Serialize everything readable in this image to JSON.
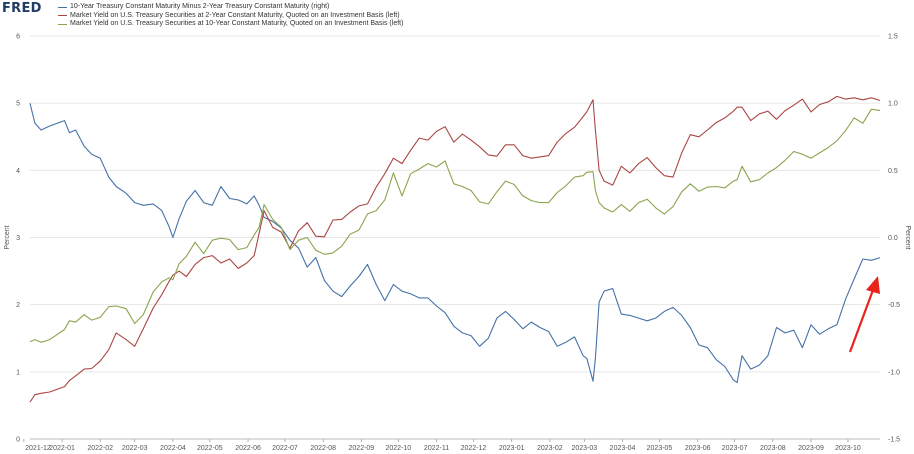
{
  "logo": "FRED",
  "colors": {
    "spread": "#4572a7",
    "two_year": "#aa4643",
    "ten_year": "#89a54e",
    "arrow": "#e8231b",
    "grid": "#e6e6e6",
    "axis_text": "#555555"
  },
  "chart_data": {
    "type": "line",
    "title": "",
    "xlabel": "",
    "ylabel": "Percent",
    "ylabel_right": "Percent",
    "ylim": [
      0,
      6
    ],
    "ylim_right": [
      -1.5,
      1.5
    ],
    "yticks": [
      "0",
      "1",
      "2",
      "3",
      "4",
      "5",
      "6"
    ],
    "yticks_right": [
      "-1.5",
      "-1.0",
      "-0.5",
      "0.0",
      "0.5",
      "1.0",
      "1.5"
    ],
    "xlim": [
      "2021-12-06",
      "2023-10-27"
    ],
    "grid": true,
    "legend_position": "top-left",
    "x_tick_labels": [
      "2021-12",
      "2022-01",
      "2022-02",
      "2022-03",
      "2022-04",
      "2022-05",
      "2022-06",
      "2022-07",
      "2022-08",
      "2022-09",
      "2022-10",
      "2022-11",
      "2022-12",
      "2023-01",
      "2023-02",
      "2023-03",
      "2023-04",
      "2023-05",
      "2023-06",
      "2023-07",
      "2023-08",
      "2023-09",
      "2023-10"
    ],
    "x_tick_dates": [
      "2021-12-01",
      "2022-01-01",
      "2022-02-01",
      "2022-03-01",
      "2022-04-01",
      "2022-05-01",
      "2022-06-01",
      "2022-07-01",
      "2022-08-01",
      "2022-09-01",
      "2022-10-01",
      "2022-11-01",
      "2022-12-01",
      "2023-01-01",
      "2023-02-01",
      "2023-03-01",
      "2023-04-01",
      "2023-05-01",
      "2023-06-01",
      "2023-07-01",
      "2023-08-01",
      "2023-09-01",
      "2023-10-01"
    ],
    "series": [
      {
        "name": "10-Year Treasury Constant Maturity Minus 2-Year Treasury Constant Maturity (right)",
        "axis": "right",
        "color": "#4572a7",
        "x": [
          "2021-12-06",
          "2021-12-10",
          "2021-12-15",
          "2021-12-22",
          "2022-01-03",
          "2022-01-07",
          "2022-01-12",
          "2022-01-19",
          "2022-01-25",
          "2022-02-01",
          "2022-02-08",
          "2022-02-14",
          "2022-02-22",
          "2022-03-01",
          "2022-03-08",
          "2022-03-16",
          "2022-03-23",
          "2022-03-29",
          "2022-04-01",
          "2022-04-06",
          "2022-04-12",
          "2022-04-19",
          "2022-04-26",
          "2022-05-03",
          "2022-05-10",
          "2022-05-17",
          "2022-05-24",
          "2022-05-31",
          "2022-06-06",
          "2022-06-10",
          "2022-06-14",
          "2022-06-21",
          "2022-06-28",
          "2022-07-05",
          "2022-07-12",
          "2022-07-19",
          "2022-07-26",
          "2022-08-02",
          "2022-08-09",
          "2022-08-16",
          "2022-08-23",
          "2022-08-30",
          "2022-09-06",
          "2022-09-13",
          "2022-09-20",
          "2022-09-27",
          "2022-10-04",
          "2022-10-11",
          "2022-10-18",
          "2022-10-25",
          "2022-11-01",
          "2022-11-08",
          "2022-11-15",
          "2022-11-22",
          "2022-11-29",
          "2022-12-06",
          "2022-12-13",
          "2022-12-20",
          "2022-12-27",
          "2023-01-03",
          "2023-01-10",
          "2023-01-17",
          "2023-01-24",
          "2023-01-31",
          "2023-02-07",
          "2023-02-14",
          "2023-02-21",
          "2023-02-28",
          "2023-03-03",
          "2023-03-08",
          "2023-03-10",
          "2023-03-13",
          "2023-03-17",
          "2023-03-24",
          "2023-03-31",
          "2023-04-07",
          "2023-04-14",
          "2023-04-21",
          "2023-04-28",
          "2023-05-05",
          "2023-05-12",
          "2023-05-19",
          "2023-05-26",
          "2023-06-02",
          "2023-06-09",
          "2023-06-16",
          "2023-06-23",
          "2023-06-30",
          "2023-07-03",
          "2023-07-07",
          "2023-07-14",
          "2023-07-21",
          "2023-07-28",
          "2023-08-04",
          "2023-08-11",
          "2023-08-18",
          "2023-08-25",
          "2023-09-01",
          "2023-09-08",
          "2023-09-15",
          "2023-09-22",
          "2023-09-29",
          "2023-10-06",
          "2023-10-13",
          "2023-10-20",
          "2023-10-27"
        ],
        "values": [
          1.0,
          0.85,
          0.8,
          0.83,
          0.87,
          0.78,
          0.8,
          0.68,
          0.62,
          0.59,
          0.45,
          0.38,
          0.33,
          0.26,
          0.24,
          0.25,
          0.2,
          0.08,
          0.0,
          0.14,
          0.27,
          0.35,
          0.26,
          0.24,
          0.38,
          0.29,
          0.28,
          0.25,
          0.31,
          0.24,
          0.15,
          0.12,
          0.07,
          -0.02,
          -0.08,
          -0.22,
          -0.15,
          -0.32,
          -0.4,
          -0.44,
          -0.36,
          -0.29,
          -0.2,
          -0.35,
          -0.47,
          -0.35,
          -0.4,
          -0.42,
          -0.45,
          -0.45,
          -0.51,
          -0.56,
          -0.66,
          -0.71,
          -0.73,
          -0.81,
          -0.75,
          -0.6,
          -0.55,
          -0.61,
          -0.68,
          -0.63,
          -0.67,
          -0.7,
          -0.81,
          -0.78,
          -0.74,
          -0.88,
          -0.9,
          -1.07,
          -0.9,
          -0.48,
          -0.4,
          -0.38,
          -0.57,
          -0.58,
          -0.6,
          -0.62,
          -0.6,
          -0.55,
          -0.52,
          -0.58,
          -0.67,
          -0.8,
          -0.82,
          -0.91,
          -0.96,
          -1.06,
          -1.08,
          -0.88,
          -0.98,
          -0.95,
          -0.88,
          -0.67,
          -0.71,
          -0.69,
          -0.82,
          -0.65,
          -0.72,
          -0.68,
          -0.65,
          -0.46,
          -0.31,
          -0.16,
          -0.17,
          -0.15
        ]
      },
      {
        "name": "Market Yield on U.S. Treasury Securities at 2-Year Constant Maturity, Quoted on an Investment Basis (left)",
        "axis": "left",
        "color": "#aa4643",
        "x": [
          "2021-12-06",
          "2021-12-10",
          "2021-12-15",
          "2021-12-22",
          "2022-01-03",
          "2022-01-07",
          "2022-01-12",
          "2022-01-19",
          "2022-01-25",
          "2022-02-01",
          "2022-02-08",
          "2022-02-14",
          "2022-02-22",
          "2022-03-01",
          "2022-03-08",
          "2022-03-16",
          "2022-03-23",
          "2022-03-29",
          "2022-04-01",
          "2022-04-06",
          "2022-04-12",
          "2022-04-19",
          "2022-04-26",
          "2022-05-03",
          "2022-05-10",
          "2022-05-17",
          "2022-05-24",
          "2022-05-31",
          "2022-06-06",
          "2022-06-10",
          "2022-06-14",
          "2022-06-21",
          "2022-06-28",
          "2022-07-05",
          "2022-07-12",
          "2022-07-19",
          "2022-07-26",
          "2022-08-02",
          "2022-08-09",
          "2022-08-16",
          "2022-08-23",
          "2022-08-30",
          "2022-09-06",
          "2022-09-13",
          "2022-09-20",
          "2022-09-27",
          "2022-10-04",
          "2022-10-11",
          "2022-10-18",
          "2022-10-25",
          "2022-11-01",
          "2022-11-08",
          "2022-11-15",
          "2022-11-22",
          "2022-11-29",
          "2022-12-06",
          "2022-12-13",
          "2022-12-20",
          "2022-12-27",
          "2023-01-03",
          "2023-01-10",
          "2023-01-17",
          "2023-01-24",
          "2023-01-31",
          "2023-02-07",
          "2023-02-14",
          "2023-02-21",
          "2023-02-28",
          "2023-03-03",
          "2023-03-08",
          "2023-03-10",
          "2023-03-13",
          "2023-03-17",
          "2023-03-24",
          "2023-03-31",
          "2023-04-07",
          "2023-04-14",
          "2023-04-21",
          "2023-04-28",
          "2023-05-05",
          "2023-05-12",
          "2023-05-19",
          "2023-05-26",
          "2023-06-02",
          "2023-06-09",
          "2023-06-16",
          "2023-06-23",
          "2023-06-30",
          "2023-07-03",
          "2023-07-07",
          "2023-07-14",
          "2023-07-21",
          "2023-07-28",
          "2023-08-04",
          "2023-08-11",
          "2023-08-18",
          "2023-08-25",
          "2023-09-01",
          "2023-09-08",
          "2023-09-15",
          "2023-09-22",
          "2023-09-29",
          "2023-10-06",
          "2023-10-13",
          "2023-10-20",
          "2023-10-27"
        ],
        "values": [
          0.55,
          0.66,
          0.68,
          0.7,
          0.78,
          0.87,
          0.94,
          1.04,
          1.05,
          1.16,
          1.33,
          1.58,
          1.48,
          1.38,
          1.64,
          1.95,
          2.15,
          2.35,
          2.44,
          2.5,
          2.42,
          2.6,
          2.7,
          2.73,
          2.62,
          2.68,
          2.54,
          2.62,
          2.73,
          3.06,
          3.4,
          3.15,
          3.08,
          2.84,
          3.1,
          3.22,
          3.02,
          3.01,
          3.26,
          3.27,
          3.38,
          3.47,
          3.5,
          3.75,
          3.95,
          4.18,
          4.1,
          4.3,
          4.48,
          4.45,
          4.58,
          4.65,
          4.42,
          4.54,
          4.45,
          4.35,
          4.23,
          4.21,
          4.38,
          4.38,
          4.22,
          4.18,
          4.2,
          4.22,
          4.42,
          4.55,
          4.64,
          4.8,
          4.87,
          5.05,
          4.6,
          4.0,
          3.84,
          3.78,
          4.06,
          3.96,
          4.1,
          4.19,
          4.04,
          3.92,
          3.9,
          4.26,
          4.53,
          4.5,
          4.6,
          4.71,
          4.78,
          4.88,
          4.94,
          4.94,
          4.74,
          4.84,
          4.88,
          4.76,
          4.89,
          4.97,
          5.06,
          4.87,
          4.98,
          5.02,
          5.1,
          5.06,
          5.08,
          5.05,
          5.08,
          5.04
        ]
      },
      {
        "name": "Market Yield on U.S. Treasury Securities at 10-Year Constant Maturity, Quoted on an Investment Basis (left)",
        "axis": "left",
        "color": "#89a54e",
        "x": [
          "2021-12-06",
          "2021-12-10",
          "2021-12-15",
          "2021-12-22",
          "2022-01-03",
          "2022-01-07",
          "2022-01-12",
          "2022-01-19",
          "2022-01-25",
          "2022-02-01",
          "2022-02-08",
          "2022-02-14",
          "2022-02-22",
          "2022-03-01",
          "2022-03-08",
          "2022-03-16",
          "2022-03-23",
          "2022-03-29",
          "2022-04-01",
          "2022-04-06",
          "2022-04-12",
          "2022-04-19",
          "2022-04-26",
          "2022-05-03",
          "2022-05-10",
          "2022-05-17",
          "2022-05-24",
          "2022-05-31",
          "2022-06-06",
          "2022-06-10",
          "2022-06-14",
          "2022-06-21",
          "2022-06-28",
          "2022-07-05",
          "2022-07-12",
          "2022-07-19",
          "2022-07-26",
          "2022-08-02",
          "2022-08-09",
          "2022-08-16",
          "2022-08-23",
          "2022-08-30",
          "2022-09-06",
          "2022-09-13",
          "2022-09-20",
          "2022-09-27",
          "2022-10-04",
          "2022-10-11",
          "2022-10-18",
          "2022-10-25",
          "2022-11-01",
          "2022-11-08",
          "2022-11-15",
          "2022-11-22",
          "2022-11-29",
          "2022-12-06",
          "2022-12-13",
          "2022-12-20",
          "2022-12-27",
          "2023-01-03",
          "2023-01-10",
          "2023-01-17",
          "2023-01-24",
          "2023-01-31",
          "2023-02-07",
          "2023-02-14",
          "2023-02-21",
          "2023-02-28",
          "2023-03-03",
          "2023-03-08",
          "2023-03-10",
          "2023-03-13",
          "2023-03-17",
          "2023-03-24",
          "2023-03-31",
          "2023-04-07",
          "2023-04-14",
          "2023-04-21",
          "2023-04-28",
          "2023-05-05",
          "2023-05-12",
          "2023-05-19",
          "2023-05-26",
          "2023-06-02",
          "2023-06-09",
          "2023-06-16",
          "2023-06-23",
          "2023-06-30",
          "2023-07-03",
          "2023-07-07",
          "2023-07-14",
          "2023-07-21",
          "2023-07-28",
          "2023-08-04",
          "2023-08-11",
          "2023-08-18",
          "2023-08-25",
          "2023-09-01",
          "2023-09-08",
          "2023-09-15",
          "2023-09-22",
          "2023-09-29",
          "2023-10-06",
          "2023-10-13",
          "2023-10-20",
          "2023-10-27"
        ],
        "values": [
          1.45,
          1.48,
          1.44,
          1.48,
          1.63,
          1.76,
          1.74,
          1.85,
          1.77,
          1.81,
          1.97,
          1.98,
          1.94,
          1.72,
          1.85,
          2.19,
          2.34,
          2.4,
          2.37,
          2.61,
          2.72,
          2.93,
          2.76,
          2.96,
          2.99,
          2.97,
          2.82,
          2.85,
          3.04,
          3.15,
          3.49,
          3.27,
          3.15,
          2.82,
          2.96,
          3.0,
          2.81,
          2.75,
          2.77,
          2.87,
          3.05,
          3.11,
          3.35,
          3.4,
          3.56,
          3.96,
          3.62,
          3.95,
          4.02,
          4.1,
          4.05,
          4.14,
          3.8,
          3.76,
          3.7,
          3.53,
          3.5,
          3.68,
          3.84,
          3.79,
          3.62,
          3.55,
          3.52,
          3.52,
          3.67,
          3.77,
          3.9,
          3.92,
          3.97,
          3.98,
          3.7,
          3.52,
          3.44,
          3.38,
          3.49,
          3.39,
          3.52,
          3.57,
          3.44,
          3.35,
          3.46,
          3.68,
          3.8,
          3.69,
          3.75,
          3.76,
          3.74,
          3.84,
          3.86,
          4.06,
          3.83,
          3.86,
          3.96,
          4.04,
          4.15,
          4.28,
          4.24,
          4.18,
          4.26,
          4.34,
          4.44,
          4.59,
          4.78,
          4.7,
          4.91,
          4.89
        ]
      }
    ]
  }
}
